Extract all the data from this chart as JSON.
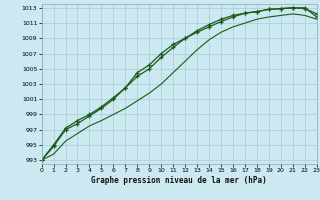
{
  "title": "Graphe pression niveau de la mer (hPa)",
  "bg_color": "#cce8f0",
  "grid_color": "#aaccd6",
  "line_color": "#1a5c1a",
  "xlim": [
    0,
    23
  ],
  "ylim": [
    992.5,
    1013.5
  ],
  "yticks": [
    993,
    995,
    997,
    999,
    1001,
    1003,
    1005,
    1007,
    1009,
    1011,
    1013
  ],
  "xticks": [
    0,
    1,
    2,
    3,
    4,
    5,
    6,
    7,
    8,
    9,
    10,
    11,
    12,
    13,
    14,
    15,
    16,
    17,
    18,
    19,
    20,
    21,
    22,
    23
  ],
  "series1": [
    993.0,
    995.0,
    997.2,
    998.2,
    999.0,
    1000.0,
    1001.2,
    1002.5,
    1004.5,
    1005.5,
    1007.0,
    1008.2,
    1009.0,
    1009.8,
    1010.5,
    1011.2,
    1011.8,
    1012.3,
    1012.5,
    1012.8,
    1012.9,
    1013.0,
    1012.9,
    1012.2
  ],
  "series2": [
    993.0,
    994.8,
    997.0,
    997.8,
    998.8,
    999.8,
    1001.0,
    1002.5,
    1004.0,
    1005.0,
    1006.5,
    1007.8,
    1009.0,
    1010.0,
    1010.8,
    1011.5,
    1012.0,
    1012.3,
    1012.5,
    1012.8,
    1012.9,
    1013.0,
    1013.0,
    1011.8
  ],
  "series3": [
    993.0,
    993.8,
    995.5,
    996.5,
    997.5,
    998.2,
    999.0,
    999.8,
    1000.8,
    1001.8,
    1003.0,
    1004.5,
    1006.0,
    1007.5,
    1008.8,
    1009.8,
    1010.5,
    1011.0,
    1011.5,
    1011.8,
    1012.0,
    1012.2,
    1012.0,
    1011.5
  ]
}
